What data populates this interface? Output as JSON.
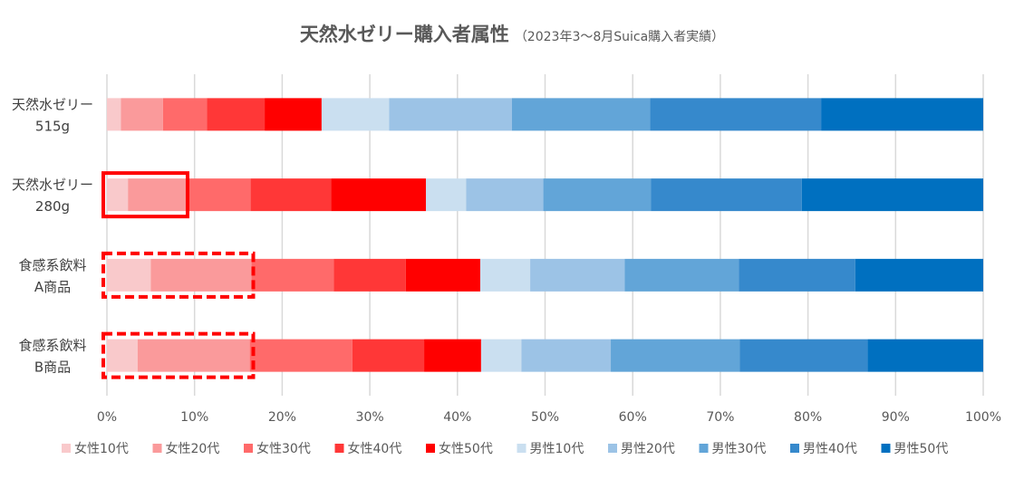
{
  "chart_data": {
    "type": "bar",
    "orientation": "horizontal",
    "stacked": "100%",
    "title": "天然水ゼリー購入者属性",
    "subtitle": "（2023年3～8月Suica購入者実績）",
    "categories": [
      [
        "天然水ゼリー",
        "515g"
      ],
      [
        "天然水ゼリー",
        "280g"
      ],
      [
        "食感系飲料",
        "A商品"
      ],
      [
        "食感系飲料",
        "B商品"
      ]
    ],
    "series": [
      {
        "name": "女性10代",
        "color": "#f9c9cb",
        "values": [
          1.6,
          2.4,
          5.0,
          3.5
        ]
      },
      {
        "name": "女性20代",
        "color": "#fa9a9b",
        "values": [
          4.8,
          6.8,
          11.5,
          12.8
        ]
      },
      {
        "name": "女性30代",
        "color": "#ff6a6a",
        "values": [
          5.0,
          7.2,
          9.4,
          11.7
        ]
      },
      {
        "name": "女性40代",
        "color": "#ff3737",
        "values": [
          6.6,
          9.2,
          8.2,
          8.2
        ]
      },
      {
        "name": "女性50代",
        "color": "#ff0000",
        "values": [
          6.5,
          10.8,
          8.5,
          6.5
        ]
      },
      {
        "name": "男性10代",
        "color": "#cadff0",
        "values": [
          7.7,
          4.6,
          5.7,
          4.6
        ]
      },
      {
        "name": "男性20代",
        "color": "#9cc3e6",
        "values": [
          14.0,
          8.8,
          10.8,
          10.2
        ]
      },
      {
        "name": "男性30代",
        "color": "#62a5d8",
        "values": [
          15.8,
          12.3,
          13.0,
          14.7
        ]
      },
      {
        "name": "男性40代",
        "color": "#3689cc",
        "values": [
          19.5,
          17.2,
          13.3,
          14.6
        ]
      },
      {
        "name": "男性50代",
        "color": "#0070c0",
        "values": [
          18.5,
          20.7,
          14.6,
          13.2
        ]
      }
    ],
    "x_ticks": [
      "0%",
      "10%",
      "20%",
      "30%",
      "40%",
      "50%",
      "60%",
      "70%",
      "80%",
      "90%",
      "100%"
    ],
    "xlim": [
      0,
      100
    ],
    "grid": true,
    "legend_position": "bottom",
    "annotations": [
      {
        "type": "solid-box",
        "category_index": 1,
        "x_range": [
          0,
          9.2
        ],
        "color": "#ff0000"
      },
      {
        "type": "dashed-box",
        "category_index": 2,
        "x_range": [
          0,
          16.7
        ],
        "color": "#ff0000"
      },
      {
        "type": "dashed-box",
        "category_index": 3,
        "x_range": [
          0,
          16.7
        ],
        "color": "#ff0000"
      }
    ]
  }
}
